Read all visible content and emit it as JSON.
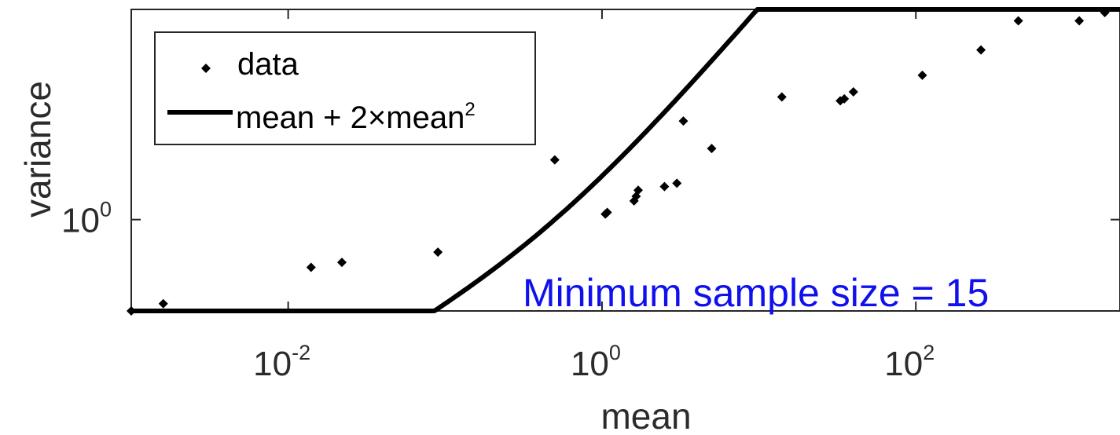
{
  "chart_data": {
    "type": "scatter",
    "xlabel": "mean",
    "ylabel": "variance",
    "xscale": "log",
    "yscale": "log",
    "xlim": [
      0.001,
      2000
    ],
    "ylim": [
      0.1,
      200
    ],
    "grid": false,
    "legend_position": "top-left",
    "x_ticks": [
      {
        "value": 0.01,
        "base": "10",
        "exp": "-2"
      },
      {
        "value": 1,
        "base": "10",
        "exp": "0"
      },
      {
        "value": 100,
        "base": "10",
        "exp": "2"
      }
    ],
    "y_ticks": [
      {
        "value": 1,
        "base": "10",
        "exp": "0"
      }
    ],
    "legend": {
      "data_label": "data",
      "fit_label_main": "mean + 2",
      "fit_label_times": "×",
      "fit_label_mean": "mean",
      "fit_label_sup": "2"
    },
    "annotation": "Minimum sample size = 15",
    "series": [
      {
        "name": "data",
        "kind": "markers",
        "color": "#000000",
        "points": [
          {
            "x": 0.001,
            "y": 0.1
          },
          {
            "x": 0.0016,
            "y": 0.12
          },
          {
            "x": 0.014,
            "y": 0.3
          },
          {
            "x": 0.022,
            "y": 0.34
          },
          {
            "x": 0.09,
            "y": 0.44
          },
          {
            "x": 0.5,
            "y": 4.5
          },
          {
            "x": 1.05,
            "y": 1.15
          },
          {
            "x": 1.08,
            "y": 1.2
          },
          {
            "x": 1.6,
            "y": 1.6
          },
          {
            "x": 1.65,
            "y": 1.8
          },
          {
            "x": 1.7,
            "y": 2.1
          },
          {
            "x": 2.5,
            "y": 2.3
          },
          {
            "x": 3.0,
            "y": 2.5
          },
          {
            "x": 3.3,
            "y": 12
          },
          {
            "x": 5.0,
            "y": 6.0
          },
          {
            "x": 14,
            "y": 22
          },
          {
            "x": 33,
            "y": 20
          },
          {
            "x": 35,
            "y": 21
          },
          {
            "x": 40,
            "y": 25
          },
          {
            "x": 110,
            "y": 38
          },
          {
            "x": 260,
            "y": 72
          },
          {
            "x": 450,
            "y": 150
          },
          {
            "x": 1100,
            "y": 150
          },
          {
            "x": 1600,
            "y": 220
          }
        ]
      },
      {
        "name": "mean + 2×mean²",
        "kind": "line",
        "color": "#000000",
        "formula": "mean + 2*mean^2"
      }
    ]
  }
}
